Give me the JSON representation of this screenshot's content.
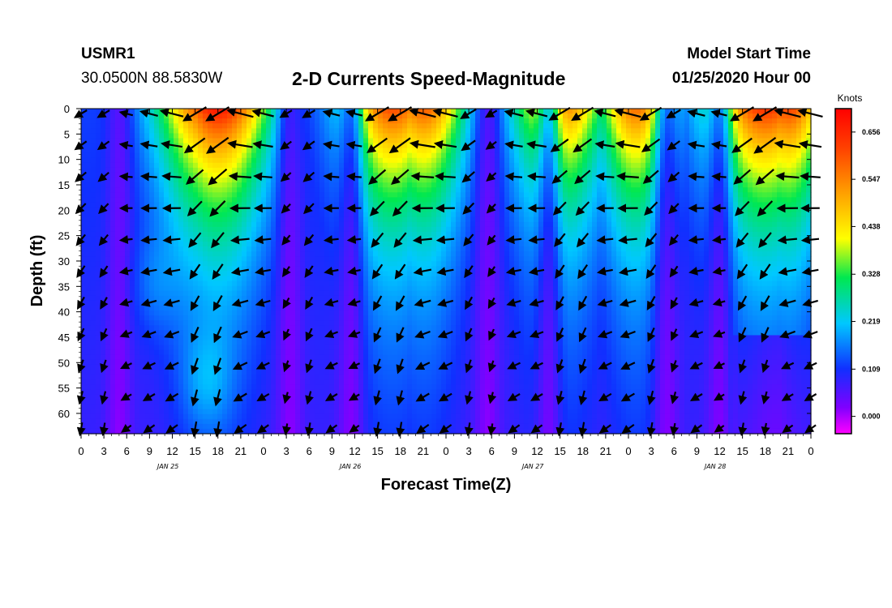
{
  "header": {
    "station_id": "USMR1",
    "coords": "30.0500N 88.5830W",
    "title": "2-D Currents Speed-Magnitude",
    "start_label": "Model Start Time",
    "start_value": "01/25/2020 Hour 00"
  },
  "chart_data": {
    "type": "heatmap",
    "title": "2-D Currents Speed-Magnitude",
    "xlabel": "Forecast Time(Z)",
    "ylabel": "Depth (ft)",
    "x_range_hours": [
      0,
      96
    ],
    "y_range_ft": [
      0,
      64
    ],
    "x_tick_labels": [
      "0",
      "3",
      "6",
      "9",
      "12",
      "15",
      "18",
      "21",
      "0",
      "3",
      "6",
      "9",
      "12",
      "15",
      "18",
      "21",
      "0",
      "3",
      "6",
      "9",
      "12",
      "15",
      "18",
      "21",
      "0",
      "3",
      "6",
      "9",
      "12",
      "15",
      "18",
      "21",
      "0"
    ],
    "day_labels": [
      {
        "label": "JAN 25",
        "hour": 11
      },
      {
        "label": "JAN 26",
        "hour": 35
      },
      {
        "label": "JAN 27",
        "hour": 59
      },
      {
        "label": "JAN 28",
        "hour": 83
      }
    ],
    "y_ticks": [
      0,
      5,
      10,
      15,
      20,
      25,
      30,
      35,
      40,
      45,
      50,
      55,
      60
    ],
    "colorbar": {
      "unit": "Knots",
      "min": -0.04,
      "max": 0.71,
      "labels": [
        "0.656",
        "0.547",
        "0.438",
        "0.328",
        "0.219",
        "0.109",
        "0.000"
      ]
    },
    "speed_model": {
      "surface_peaks": [
        {
          "center_hour": 17,
          "width": 7.0,
          "amp": 0.58
        },
        {
          "center_hour": 18,
          "width": 6.8,
          "amp": 0.64
        },
        {
          "center_hour": 41,
          "width": 6.5,
          "amp": 0.57
        },
        {
          "center_hour": 45,
          "width": 5.5,
          "amp": 0.55
        },
        {
          "center_hour": 63,
          "width": 6.0,
          "amp": 0.52
        },
        {
          "center_hour": 73,
          "width": 5.0,
          "amp": 0.53
        },
        {
          "center_hour": 90,
          "width": 7.5,
          "amp": 0.6
        },
        {
          "center_hour": 93,
          "width": 5.0,
          "amp": 0.58
        }
      ],
      "slack_hours": [
        5.0,
        27.5,
        35.5,
        53.5,
        61.5,
        77.0,
        84.0
      ],
      "bottom_hotspots": [
        {
          "center_hour": 16.5,
          "depth_ft": 54,
          "amp": 0.07
        },
        {
          "center_hour": 9.5,
          "depth_ft": 35,
          "amp": 0.05
        }
      ]
    },
    "vector_grid": {
      "hour_step": 3,
      "depth_step_ft": 6.2,
      "flood_direction_deg": 210,
      "ebb_direction_deg": 165
    }
  }
}
